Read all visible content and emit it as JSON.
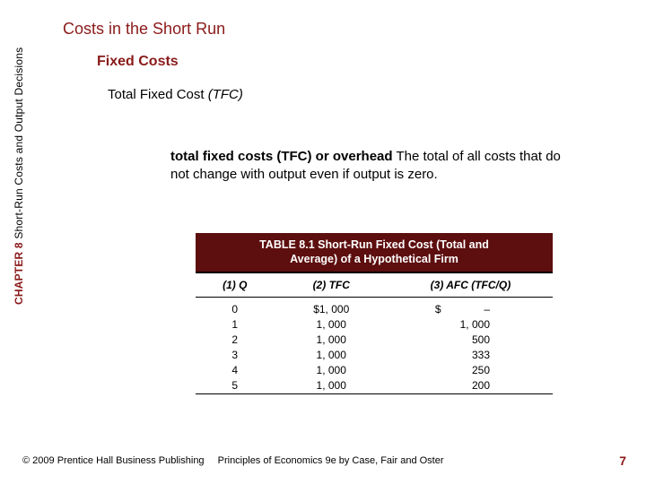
{
  "sidebar": {
    "chapter_label": "CHAPTER 8",
    "chapter_title": " Short-Run Costs and Output Decisions"
  },
  "headings": {
    "main": "Costs in the Short Run",
    "sub": "Fixed Costs",
    "sub2": "Total Fixed Cost (TFC)"
  },
  "definition": {
    "term": "total fixed costs (TFC) or overhead",
    "body": "  The total of all costs that do not change with output even if output is zero."
  },
  "table": {
    "title_line1": "TABLE 8.1  Short-Run Fixed Cost (Total and",
    "title_line2": "Average) of a Hypothetical Firm",
    "columns": [
      "(1) Q",
      "(2) TFC",
      "(3) AFC (TFC/Q)"
    ],
    "rows": [
      {
        "q": "0",
        "tfc": "$1, 000",
        "afc_prefix": "$",
        "afc": "–"
      },
      {
        "q": "1",
        "tfc": "1, 000",
        "afc_prefix": "",
        "afc": "1, 000"
      },
      {
        "q": "2",
        "tfc": "1, 000",
        "afc_prefix": "",
        "afc": "500"
      },
      {
        "q": "3",
        "tfc": "1, 000",
        "afc_prefix": "",
        "afc": "333"
      },
      {
        "q": "4",
        "tfc": "1, 000",
        "afc_prefix": "",
        "afc": "250"
      },
      {
        "q": "5",
        "tfc": "1, 000",
        "afc_prefix": "",
        "afc": "200"
      }
    ]
  },
  "footer": {
    "left": "© 2009 Prentice Hall Business Publishing",
    "right": "Principles of Economics 9e by Case, Fair and Oster"
  },
  "page_number": "7",
  "colors": {
    "heading": "#8b1a1a",
    "table_header_bg": "#5d0e0e"
  }
}
